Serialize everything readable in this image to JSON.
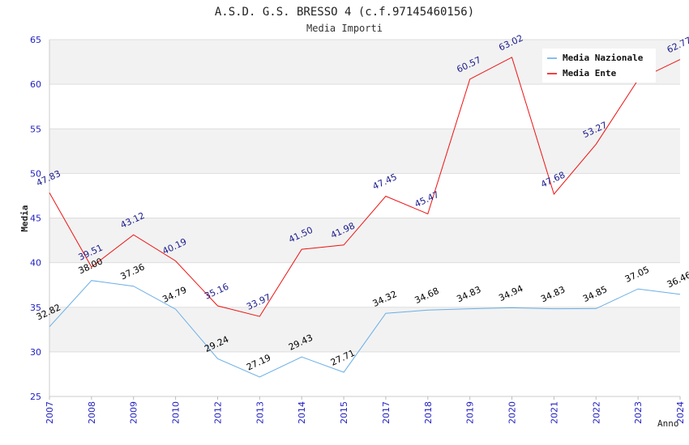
{
  "chart_data": {
    "type": "line",
    "title": "A.S.D. G.S. BRESSO 4 (c.f.97145460156)",
    "subtitle": "Media Importi",
    "xlabel": "Anno",
    "ylabel": "Media",
    "ylim": [
      25,
      65
    ],
    "yticks": [
      25,
      30,
      35,
      40,
      45,
      50,
      55,
      60,
      65
    ],
    "categories": [
      "2007",
      "2008",
      "2009",
      "2010",
      "2012",
      "2013",
      "2014",
      "2015",
      "2017",
      "2018",
      "2019",
      "2020",
      "2021",
      "2022",
      "2023",
      "2024"
    ],
    "legend_position": "top-right",
    "grid": true,
    "series": [
      {
        "name": "Media Nazionale",
        "color": "#6aaee6",
        "label_color": "#000000",
        "values": [
          32.82,
          38.0,
          37.36,
          34.79,
          29.24,
          27.19,
          29.43,
          27.71,
          34.32,
          34.68,
          34.83,
          34.94,
          34.83,
          34.85,
          37.05,
          36.46
        ],
        "labels": [
          "32.82",
          "38.00",
          "37.36",
          "34.79",
          "29.24",
          "27.19",
          "29.43",
          "27.71",
          "34.32",
          "34.68",
          "34.83",
          "34.94",
          "34.83",
          "34.85",
          "37.05",
          "36.46"
        ]
      },
      {
        "name": "Media Ente",
        "color": "#ee1111",
        "label_color": "#1a1a8c",
        "values": [
          47.83,
          39.51,
          43.12,
          40.19,
          35.16,
          33.97,
          41.5,
          41.98,
          47.45,
          45.47,
          60.57,
          63.02,
          47.68,
          53.27,
          60.5,
          62.77
        ],
        "labels": [
          "47.83",
          "39.51",
          "43.12",
          "40.19",
          "35.16",
          "33.97",
          "41.50",
          "41.98",
          "47.45",
          "45.47",
          "60.57",
          "63.02",
          "47.68",
          "53.27",
          "",
          "62.77"
        ]
      }
    ]
  },
  "colors": {
    "axis_tick_text": "#1f1fbf",
    "band": "#f2f2f2",
    "grid": "#dddddd"
  }
}
